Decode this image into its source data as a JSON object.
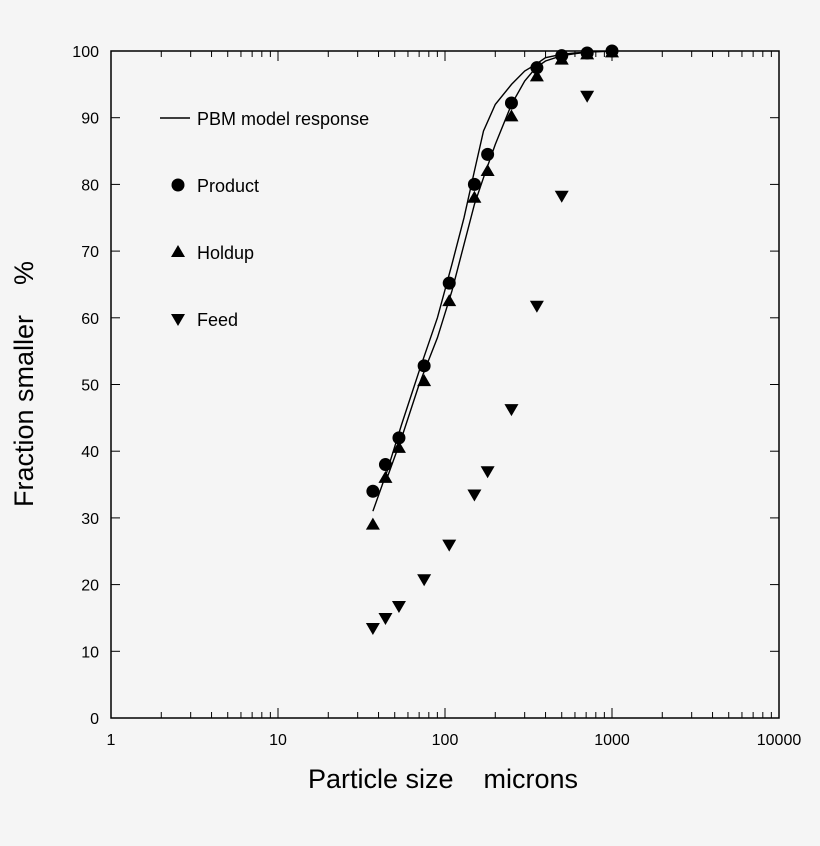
{
  "chart_data": {
    "type": "scatter",
    "title": "",
    "xlabel": "Particle size    microns",
    "ylabel": "Fraction smaller    %",
    "x_scale": "log",
    "xlim": [
      1,
      10000
    ],
    "ylim": [
      0,
      100
    ],
    "x_ticks": [
      1,
      10,
      100,
      1000,
      10000
    ],
    "x_tick_labels": [
      "1",
      "10",
      "100",
      "1000",
      "10000"
    ],
    "y_ticks": [
      0,
      10,
      20,
      30,
      40,
      50,
      60,
      70,
      80,
      90,
      100
    ],
    "y_tick_labels": [
      "0",
      "10",
      "20",
      "30",
      "40",
      "50",
      "60",
      "70",
      "80",
      "90",
      "100"
    ],
    "grid": false,
    "legend_position": "upper-left",
    "series": [
      {
        "name": "PBM model response",
        "kind": "line",
        "color": "#000000",
        "x": [
          37,
          45,
          55,
          70,
          90,
          110,
          130,
          150,
          170,
          200,
          250,
          300,
          350,
          400,
          500,
          600,
          700,
          800,
          1000
        ],
        "y": [
          31,
          37,
          44,
          52,
          60,
          68,
          75,
          82,
          88,
          92,
          95,
          97,
          98,
          99,
          99.5,
          99.7,
          99.8,
          99.9,
          100
        ]
      },
      {
        "name": "PBM model response",
        "kind": "line",
        "color": "#000000",
        "x": [
          45,
          55,
          70,
          90,
          110,
          130,
          150,
          170,
          200,
          250,
          300,
          350,
          400,
          500,
          600,
          700,
          800,
          1000
        ],
        "y": [
          36,
          42,
          50,
          57,
          64,
          71,
          77,
          81,
          86,
          92,
          95.5,
          97.5,
          98.5,
          99.3,
          99.6,
          99.8,
          99.9,
          100
        ]
      },
      {
        "name": "Product",
        "kind": "marker",
        "marker": "circle",
        "color": "#000000",
        "x": [
          37,
          44,
          53,
          75,
          106,
          150,
          180,
          250,
          355,
          500,
          710,
          1000
        ],
        "y": [
          34,
          38,
          42,
          52.8,
          65.2,
          80,
          84.5,
          92.2,
          97.5,
          99.3,
          99.7,
          100
        ]
      },
      {
        "name": "Holdup",
        "kind": "marker",
        "marker": "triangle-up",
        "color": "#000000",
        "x": [
          37,
          44,
          53,
          75,
          106,
          150,
          180,
          250,
          355,
          500,
          710,
          1000
        ],
        "y": [
          29,
          36,
          40.5,
          50.5,
          62.5,
          78,
          82,
          90.2,
          96.2,
          98.7,
          99.5,
          99.8
        ]
      },
      {
        "name": "Feed",
        "kind": "marker",
        "marker": "triangle-down",
        "color": "#000000",
        "x": [
          37,
          44,
          53,
          75,
          106,
          150,
          180,
          250,
          355,
          500,
          710
        ],
        "y": [
          13.5,
          15,
          16.8,
          20.8,
          26,
          33.5,
          37,
          46.3,
          61.8,
          78.3,
          93.3
        ]
      }
    ],
    "legend": [
      {
        "label": "PBM model response",
        "symbol": "line"
      },
      {
        "label": "Product",
        "symbol": "circle"
      },
      {
        "label": "Holdup",
        "symbol": "triangle-up"
      },
      {
        "label": "Feed",
        "symbol": "triangle-down"
      }
    ]
  }
}
